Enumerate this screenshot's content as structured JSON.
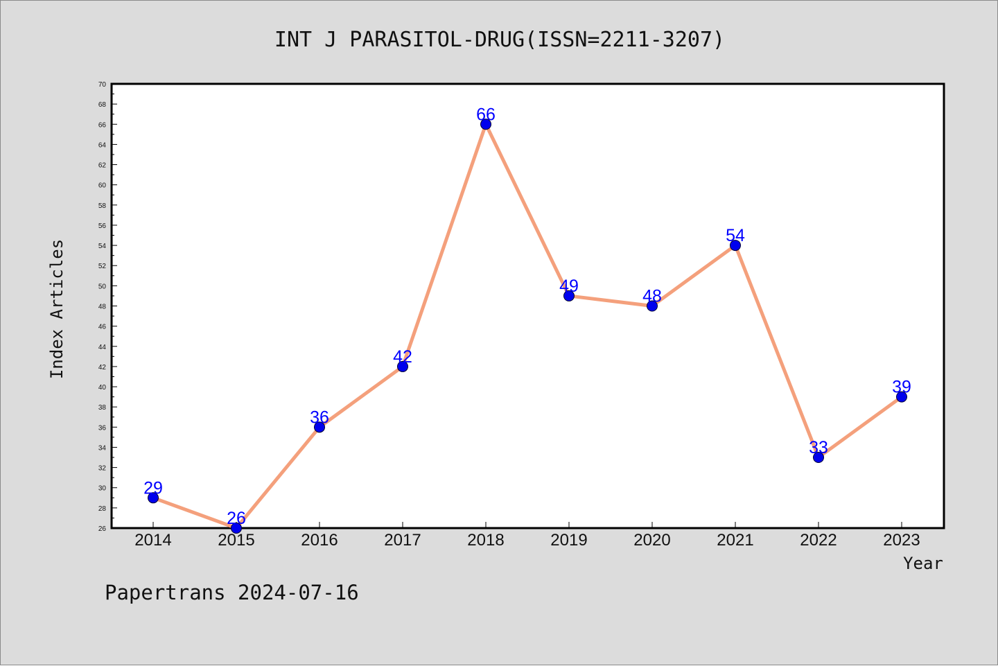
{
  "chart_data": {
    "type": "line",
    "title": "INT J PARASITOL-DRUG(ISSN=2211-3207)",
    "xlabel": "Year",
    "ylabel": "Index Articles",
    "categories": [
      "2014",
      "2015",
      "2016",
      "2017",
      "2018",
      "2019",
      "2020",
      "2021",
      "2022",
      "2023"
    ],
    "series": [
      {
        "values": [
          29,
          26,
          36,
          42,
          66,
          49,
          48,
          54,
          33,
          39
        ]
      }
    ],
    "ylim": [
      26,
      70
    ],
    "yticks": [
      26,
      28,
      30,
      32,
      34,
      36,
      38,
      40,
      42,
      44,
      46,
      48,
      50,
      52,
      54,
      56,
      58,
      60,
      62,
      64,
      66,
      68,
      70
    ],
    "data_labels": true,
    "grid": false,
    "legend": "none",
    "colors": {
      "line": "#f4a07c",
      "marker": "#0000ee",
      "label": "#0000ff",
      "plot_bg": "#ffffff",
      "page_bg": "#dcdcdc"
    }
  },
  "footer": {
    "text": "Papertrans 2024-07-16"
  }
}
